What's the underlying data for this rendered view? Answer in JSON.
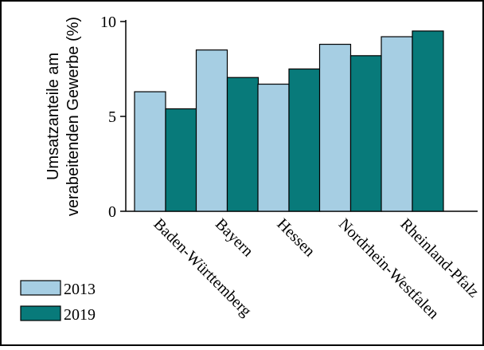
{
  "chart_data": {
    "type": "bar",
    "categories": [
      "Baden-Württemberg",
      "Bayern",
      "Hessen",
      "Nordrhein-Westfalen",
      "Rheinland-Pfalz"
    ],
    "series": [
      {
        "name": "2013",
        "values": [
          6.3,
          8.5,
          6.7,
          8.8,
          9.2
        ],
        "color": "#a6cee3"
      },
      {
        "name": "2019",
        "values": [
          5.4,
          7.05,
          7.5,
          8.2,
          9.5
        ],
        "color": "#087a7a"
      }
    ],
    "title": "",
    "xlabel": "",
    "ylabel": "Umsatzanteile am verabeitenden Gewerbe (%)",
    "ylabel_lines": [
      "Umsatzanteile am",
      "verabeitenden Gewerbe (%)"
    ],
    "ylim": [
      0,
      10
    ],
    "yticks": [
      0,
      5,
      10
    ],
    "legend_position": "bottom-left",
    "grid": false
  }
}
